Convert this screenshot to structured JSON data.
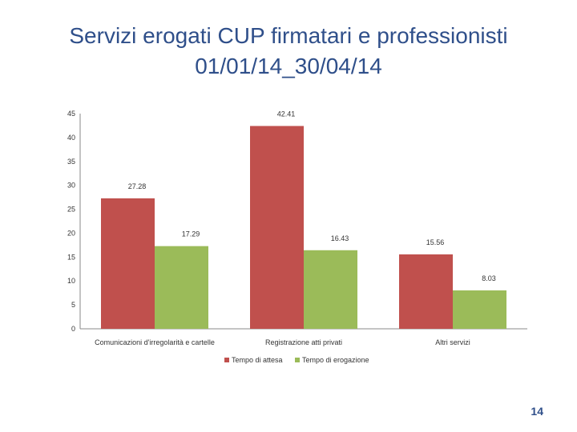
{
  "title_line1": "Servizi erogati CUP firmatari e professionisti",
  "title_line2": "01/01/14_30/04/14",
  "page_number": "14",
  "chart_data": {
    "type": "bar",
    "categories": [
      "Comunicazioni d'irregolarità e cartelle",
      "Registrazione atti privati",
      "Altri servizi"
    ],
    "series": [
      {
        "name": "Tempo di attesa",
        "values": [
          27.28,
          42.41,
          15.56
        ],
        "labels": [
          "27.28",
          "42.41",
          "15.56"
        ],
        "color": "#c0504d"
      },
      {
        "name": "Tempo di erogazione",
        "values": [
          17.29,
          16.43,
          8.03
        ],
        "labels": [
          "17.29",
          "16.43",
          "8.03"
        ],
        "color": "#9bbb59"
      }
    ],
    "ylim": [
      0,
      45
    ],
    "yticks": [
      "0",
      "5",
      "10",
      "15",
      "20",
      "25",
      "30",
      "35",
      "40",
      "45"
    ],
    "legend_position": "bottom",
    "grid": false
  }
}
